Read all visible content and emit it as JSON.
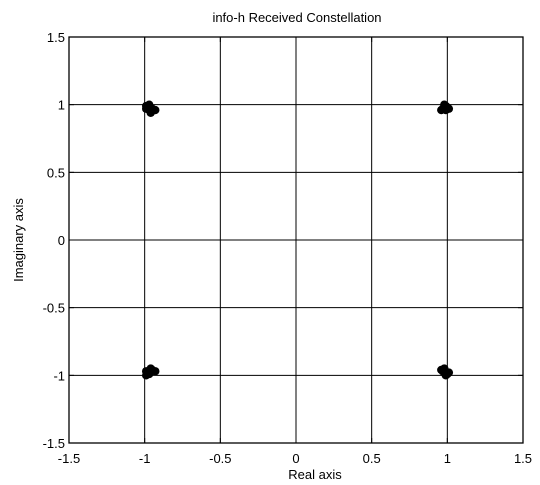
{
  "chart_data": {
    "type": "scatter",
    "title": "info-h Received Constellation",
    "xlabel": "Real axis",
    "ylabel": "Imaginary axis",
    "xlim": [
      -1.5,
      1.5
    ],
    "ylim": [
      -1.5,
      1.5
    ],
    "xticks": [
      -1.5,
      -1,
      -0.5,
      0,
      0.5,
      1,
      1.5
    ],
    "yticks": [
      -1.5,
      -1,
      -0.5,
      0,
      0.5,
      1,
      1.5
    ],
    "xtick_labels": [
      "-1.5",
      "-1",
      "-0.5",
      "0",
      "0.5",
      "1",
      "1.5"
    ],
    "ytick_labels": [
      "-1.5",
      "-1",
      "-0.5",
      "0",
      "0.5",
      "1",
      "1.5"
    ],
    "grid": true,
    "clusters": [
      {
        "x": -1,
        "y": 1
      },
      {
        "x": 1,
        "y": 1
      },
      {
        "x": -1,
        "y": -1
      },
      {
        "x": 1,
        "y": -1
      }
    ],
    "points": [
      {
        "x": -0.98,
        "y": 0.98
      },
      {
        "x": -0.97,
        "y": 0.96
      },
      {
        "x": -0.99,
        "y": 0.97
      },
      {
        "x": -0.95,
        "y": 0.97
      },
      {
        "x": -0.93,
        "y": 0.96
      },
      {
        "x": -0.96,
        "y": 0.94
      },
      {
        "x": -0.97,
        "y": 1.0
      },
      {
        "x": -0.99,
        "y": 0.99
      },
      {
        "x": 0.98,
        "y": 0.98
      },
      {
        "x": 0.99,
        "y": 0.96
      },
      {
        "x": 0.97,
        "y": 0.97
      },
      {
        "x": 1.0,
        "y": 0.98
      },
      {
        "x": 0.96,
        "y": 0.96
      },
      {
        "x": 1.01,
        "y": 0.97
      },
      {
        "x": 0.98,
        "y": 1.0
      },
      {
        "x": 0.99,
        "y": 0.99
      },
      {
        "x": -0.98,
        "y": -0.98
      },
      {
        "x": -0.99,
        "y": -1.0
      },
      {
        "x": -0.96,
        "y": -0.97
      },
      {
        "x": -0.95,
        "y": -0.96
      },
      {
        "x": -0.93,
        "y": -0.97
      },
      {
        "x": -0.96,
        "y": -0.95
      },
      {
        "x": -0.99,
        "y": -0.97
      },
      {
        "x": -0.97,
        "y": -0.99
      },
      {
        "x": 0.98,
        "y": -0.98
      },
      {
        "x": 0.99,
        "y": -1.0
      },
      {
        "x": 0.97,
        "y": -0.97
      },
      {
        "x": 1.0,
        "y": -0.99
      },
      {
        "x": 0.96,
        "y": -0.96
      },
      {
        "x": 1.01,
        "y": -0.98
      },
      {
        "x": 0.98,
        "y": -0.95
      },
      {
        "x": 0.99,
        "y": -0.99
      }
    ],
    "point_color": "#000000"
  }
}
